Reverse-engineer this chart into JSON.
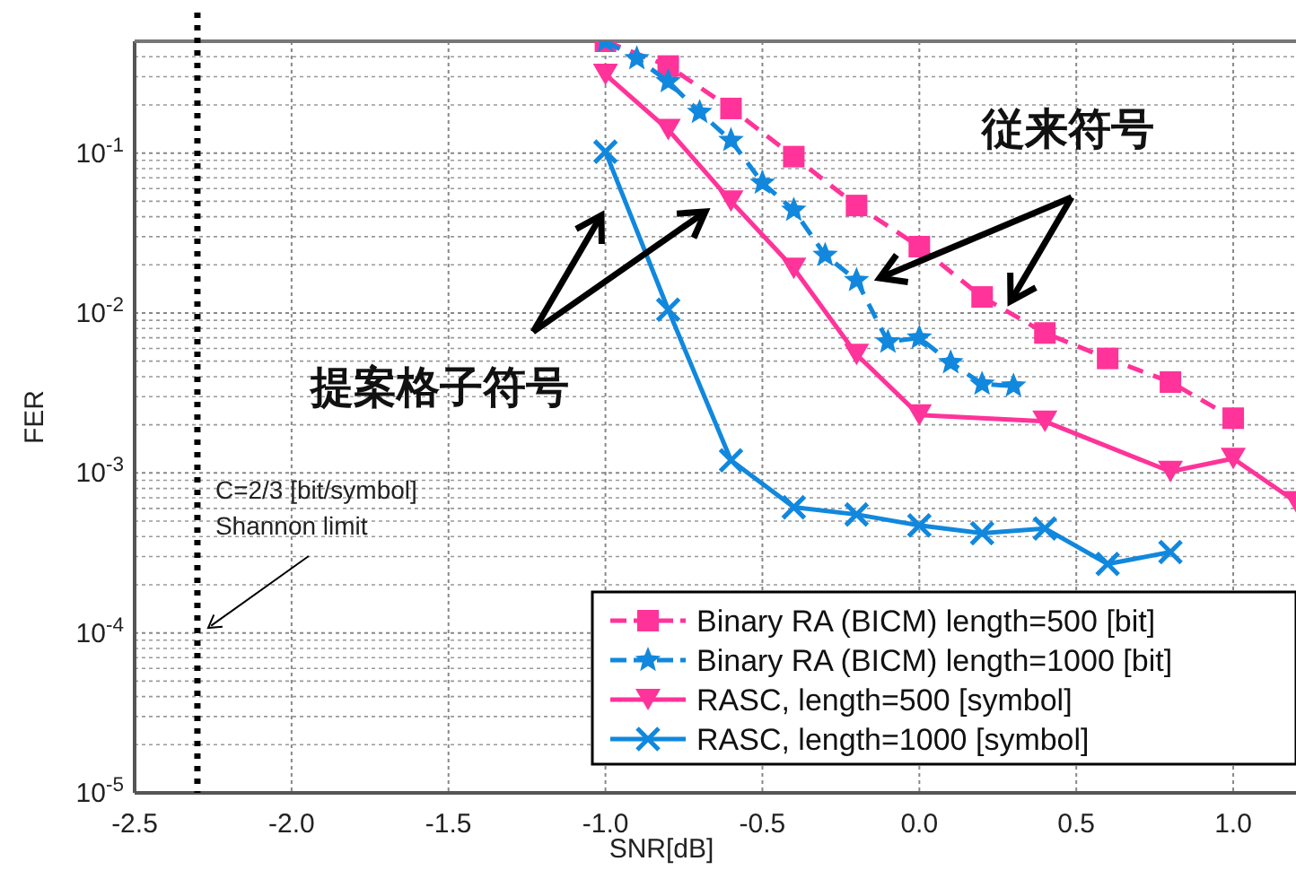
{
  "chart_data": {
    "type": "line",
    "xlabel": "SNR[dB]",
    "ylabel": "FER",
    "log": "y",
    "grid": true,
    "legend": "bottom right",
    "xlim": [
      -2.5,
      1.2
    ],
    "ylim": [
      1e-05,
      0.5
    ],
    "xticks": [
      {
        "value": -2.5,
        "label": "-2.5"
      },
      {
        "value": -2,
        "label": "-2.0"
      },
      {
        "value": -1.5,
        "label": "-1.5"
      },
      {
        "value": -1,
        "label": "-1.0"
      },
      {
        "value": -0.5,
        "label": "-0.5"
      },
      {
        "value": 0,
        "label": "0.0"
      },
      {
        "value": 0.5,
        "label": "0.5"
      },
      {
        "value": 1,
        "label": "1.0"
      }
    ],
    "yticks": [
      {
        "value": 1e-05,
        "label": "10$^{-5}$"
      },
      {
        "value": 0.0001,
        "label": "10$^{-4}$"
      },
      {
        "value": 0.001,
        "label": "10$^{-3}$"
      },
      {
        "value": 0.01,
        "label": "10$^{-2}$"
      },
      {
        "value": 0.1,
        "label": "10$^{-1}$"
      }
    ],
    "series": [
      {
        "name": "Binary RA (BICM) length=500 [bit]",
        "color": "#ff3399",
        "marker": "square",
        "line_style": "dashed",
        "x": [
          -1.0,
          -0.8,
          -0.6,
          -0.4,
          -0.2,
          0,
          0.2,
          0.4,
          0.6,
          0.8,
          1.0
        ],
        "values": [
          0.5,
          0.35,
          0.19,
          0.095,
          0.047,
          0.026,
          0.0126,
          0.0075,
          0.0052,
          0.0037,
          0.0022
        ]
      },
      {
        "name": "Binary RA (BICM) length=1000 [bit]",
        "color": "#1188dd",
        "marker": "star",
        "line_style": "dashed",
        "x": [
          -1.0,
          -0.9,
          -0.8,
          -0.7,
          -0.6,
          -0.5,
          -0.4,
          -0.3,
          -0.2,
          -0.1,
          0,
          0.1,
          0.2,
          0.3
        ],
        "values": [
          0.5,
          0.39,
          0.28,
          0.18,
          0.12,
          0.065,
          0.044,
          0.023,
          0.016,
          0.0066,
          0.007,
          0.0049,
          0.0036,
          0.0035
        ]
      },
      {
        "name": "RASC, length=500 [symbol]",
        "color": "#ff3399",
        "marker": "triangle",
        "line_style": "solid",
        "x": [
          -1.0,
          -0.8,
          -0.6,
          -0.4,
          -0.2,
          0,
          0.4,
          0.8,
          1.0,
          1.2
        ],
        "values": [
          0.31,
          0.14,
          0.05,
          0.019,
          0.0055,
          0.0023,
          0.0021,
          0.00102,
          0.00123,
          0.00066
        ]
      },
      {
        "name": "RASC, length=1000 [symbol]",
        "color": "#1188dd",
        "marker": "cross",
        "line_style": "solid",
        "x": [
          -1.0,
          -0.8,
          -0.6,
          -0.4,
          -0.2,
          0,
          0.2,
          0.4,
          0.6,
          0.8
        ],
        "values": [
          0.102,
          0.0105,
          0.0012,
          0.00061,
          0.00055,
          0.00047,
          0.00042,
          0.00045,
          0.00027,
          0.00032
        ]
      }
    ],
    "ref_lines": [
      {
        "axis": "x",
        "value": -2.3,
        "color": "#000000",
        "line_style": "dotted"
      }
    ],
    "annotations": [
      "C=2/3 [bit/symbol]",
      "Shannon limit",
      "従来符号",
      "提案格子符号"
    ]
  }
}
